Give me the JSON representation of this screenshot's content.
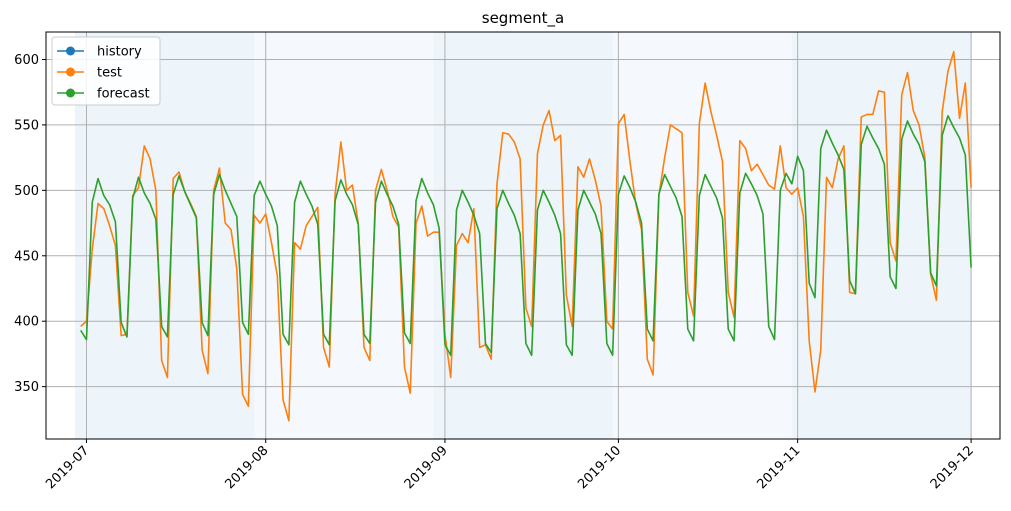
{
  "chart_data": {
    "type": "line",
    "title": "segment_a",
    "xlabel": "",
    "ylabel": "",
    "x_range": [
      "2019-06-24",
      "2019-12-06"
    ],
    "ylim": [
      310,
      621
    ],
    "yticks": [
      350,
      400,
      450,
      500,
      550,
      600
    ],
    "xticks": [
      {
        "date": "2019-07-01",
        "label": "2019-07"
      },
      {
        "date": "2019-08-01",
        "label": "2019-08"
      },
      {
        "date": "2019-09-01",
        "label": "2019-09"
      },
      {
        "date": "2019-10-01",
        "label": "2019-10"
      },
      {
        "date": "2019-11-01",
        "label": "2019-11"
      },
      {
        "date": "2019-12-01",
        "label": "2019-12"
      }
    ],
    "grid": true,
    "legend_position": "upper-left",
    "shaded_bands": [
      {
        "start": "2019-06-29",
        "end": "2019-07-30",
        "color": "#d6e8f7",
        "opacity": 0.45
      },
      {
        "start": "2019-07-30",
        "end": "2019-08-30",
        "color": "#d6e8f7",
        "opacity": 0.25
      },
      {
        "start": "2019-08-30",
        "end": "2019-09-30",
        "color": "#d6e8f7",
        "opacity": 0.45
      },
      {
        "start": "2019-09-30",
        "end": "2019-10-31",
        "color": "#d6e8f7",
        "opacity": 0.25
      },
      {
        "start": "2019-10-31",
        "end": "2019-12-01",
        "color": "#d6e8f7",
        "opacity": 0.45
      }
    ],
    "start_date": "2019-06-30",
    "series": [
      {
        "name": "history",
        "color": "#1f77b4",
        "values": []
      },
      {
        "name": "test",
        "color": "#ff7f0e",
        "values": [
          396,
          400,
          455,
          490,
          486,
          473,
          458,
          389,
          390,
          496,
          502,
          534,
          524,
          500,
          370,
          357,
          509,
          514,
          499,
          490,
          480,
          378,
          360,
          500,
          517,
          475,
          470,
          440,
          344,
          335,
          481,
          475,
          482,
          460,
          435,
          340,
          324,
          460,
          455,
          473,
          480,
          487,
          380,
          365,
          497,
          537,
          500,
          504,
          475,
          380,
          370,
          500,
          516,
          500,
          480,
          472,
          365,
          345,
          475,
          488,
          465,
          468,
          468,
          390,
          357,
          458,
          467,
          460,
          486,
          380,
          382,
          371,
          505,
          544,
          543,
          537,
          524,
          410,
          396,
          528,
          550,
          561,
          538,
          542,
          420,
          396,
          518,
          510,
          524,
          508,
          488,
          400,
          394,
          551,
          558,
          522,
          490,
          470,
          371,
          359,
          496,
          525,
          550,
          547,
          544,
          422,
          404,
          551,
          582,
          560,
          542,
          522,
          422,
          403,
          538,
          532,
          515,
          520,
          512,
          504,
          501,
          534,
          502,
          497,
          502,
          480,
          385,
          346,
          378,
          510,
          502,
          524,
          534,
          422,
          421,
          556,
          558,
          558,
          576,
          575,
          460,
          446,
          573,
          590,
          561,
          550,
          525,
          436,
          416,
          560,
          591,
          606,
          555,
          582,
          502
        ]
      },
      {
        "name": "forecast",
        "color": "#2ca02c",
        "values": [
          393,
          386,
          491,
          509,
          496,
          489,
          476,
          399,
          388,
          494,
          510,
          498,
          490,
          478,
          396,
          388,
          497,
          511,
          499,
          489,
          479,
          399,
          389,
          497,
          512,
          500,
          490,
          480,
          399,
          390,
          496,
          507,
          497,
          488,
          473,
          390,
          382,
          491,
          507,
          497,
          488,
          474,
          390,
          382,
          492,
          508,
          497,
          489,
          474,
          390,
          383,
          491,
          507,
          497,
          488,
          474,
          391,
          383,
          492,
          509,
          498,
          489,
          471,
          382,
          374,
          485,
          500,
          491,
          481,
          467,
          383,
          376,
          486,
          500,
          490,
          481,
          467,
          383,
          374,
          485,
          500,
          491,
          481,
          467,
          382,
          374,
          485,
          500,
          491,
          482,
          467,
          383,
          374,
          497,
          511,
          502,
          491,
          475,
          394,
          385,
          497,
          512,
          503,
          494,
          480,
          394,
          385,
          496,
          512,
          503,
          494,
          479,
          394,
          385,
          498,
          513,
          505,
          496,
          482,
          396,
          386,
          500,
          513,
          505,
          526,
          515,
          429,
          418,
          532,
          546,
          536,
          527,
          516,
          431,
          421,
          535,
          549,
          540,
          532,
          520,
          434,
          425,
          539,
          553,
          543,
          535,
          522,
          437,
          427,
          542,
          557,
          548,
          540,
          527,
          441
        ]
      }
    ]
  }
}
